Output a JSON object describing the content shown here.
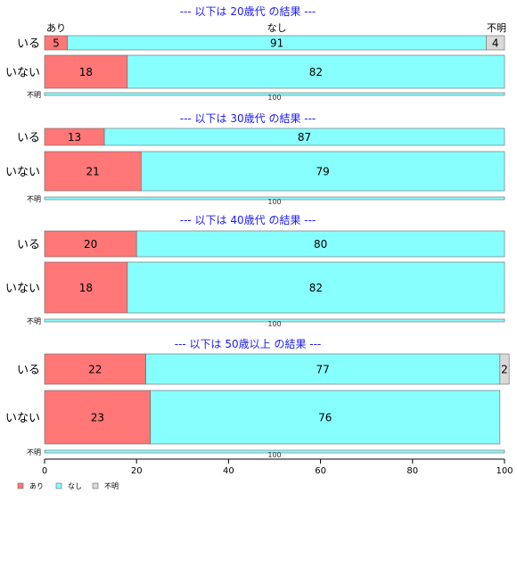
{
  "chart_data": {
    "type": "bar",
    "orientation": "horizontal",
    "stacked": true,
    "xlim": [
      0,
      100
    ],
    "xticks": [
      "0",
      "20",
      "40",
      "60",
      "80",
      "100"
    ],
    "categories_legend": [
      "あり",
      "なし",
      "不明"
    ],
    "colors": {
      "あり": "#ff7777",
      "なし": "#88ffff",
      "不明": "#d9d9d9"
    },
    "top_labels": [
      "あり",
      "なし",
      "不明"
    ],
    "panels": [
      {
        "title": "--- 以下は 20歳代 の結果 ---",
        "rows": [
          {
            "label": "いる",
            "values": [
              5,
              91,
              4
            ],
            "labels": [
              "5",
              "91",
              "4"
            ]
          },
          {
            "label": "いない",
            "values": [
              18,
              82,
              0
            ],
            "labels": [
              "18",
              "82",
              ""
            ]
          },
          {
            "label": "不明",
            "values": [
              0,
              100,
              0
            ],
            "labels": [
              "",
              "100",
              ""
            ]
          }
        ]
      },
      {
        "title": "--- 以下は 30歳代 の結果 ---",
        "rows": [
          {
            "label": "いる",
            "values": [
              13,
              87,
              0
            ],
            "labels": [
              "13",
              "87",
              ""
            ]
          },
          {
            "label": "いない",
            "values": [
              21,
              79,
              0
            ],
            "labels": [
              "21",
              "79",
              ""
            ]
          },
          {
            "label": "不明",
            "values": [
              0,
              100,
              0
            ],
            "labels": [
              "",
              "100",
              ""
            ]
          }
        ]
      },
      {
        "title": "--- 以下は 40歳代 の結果 ---",
        "rows": [
          {
            "label": "いる",
            "values": [
              20,
              80,
              0
            ],
            "labels": [
              "20",
              "80",
              ""
            ]
          },
          {
            "label": "いない",
            "values": [
              18,
              82,
              0
            ],
            "labels": [
              "18",
              "82",
              ""
            ]
          },
          {
            "label": "不明",
            "values": [
              0,
              100,
              0
            ],
            "labels": [
              "",
              "100",
              ""
            ]
          }
        ]
      },
      {
        "title": "--- 以下は 50歳以上 の結果 ---",
        "rows": [
          {
            "label": "いる",
            "values": [
              22,
              77,
              2
            ],
            "labels": [
              "22",
              "77",
              "2"
            ]
          },
          {
            "label": "いない",
            "values": [
              23,
              76,
              0
            ],
            "labels": [
              "23",
              "76",
              ""
            ]
          },
          {
            "label": "不明",
            "values": [
              0,
              100,
              0
            ],
            "labels": [
              "",
              "100",
              ""
            ]
          }
        ]
      }
    ]
  }
}
